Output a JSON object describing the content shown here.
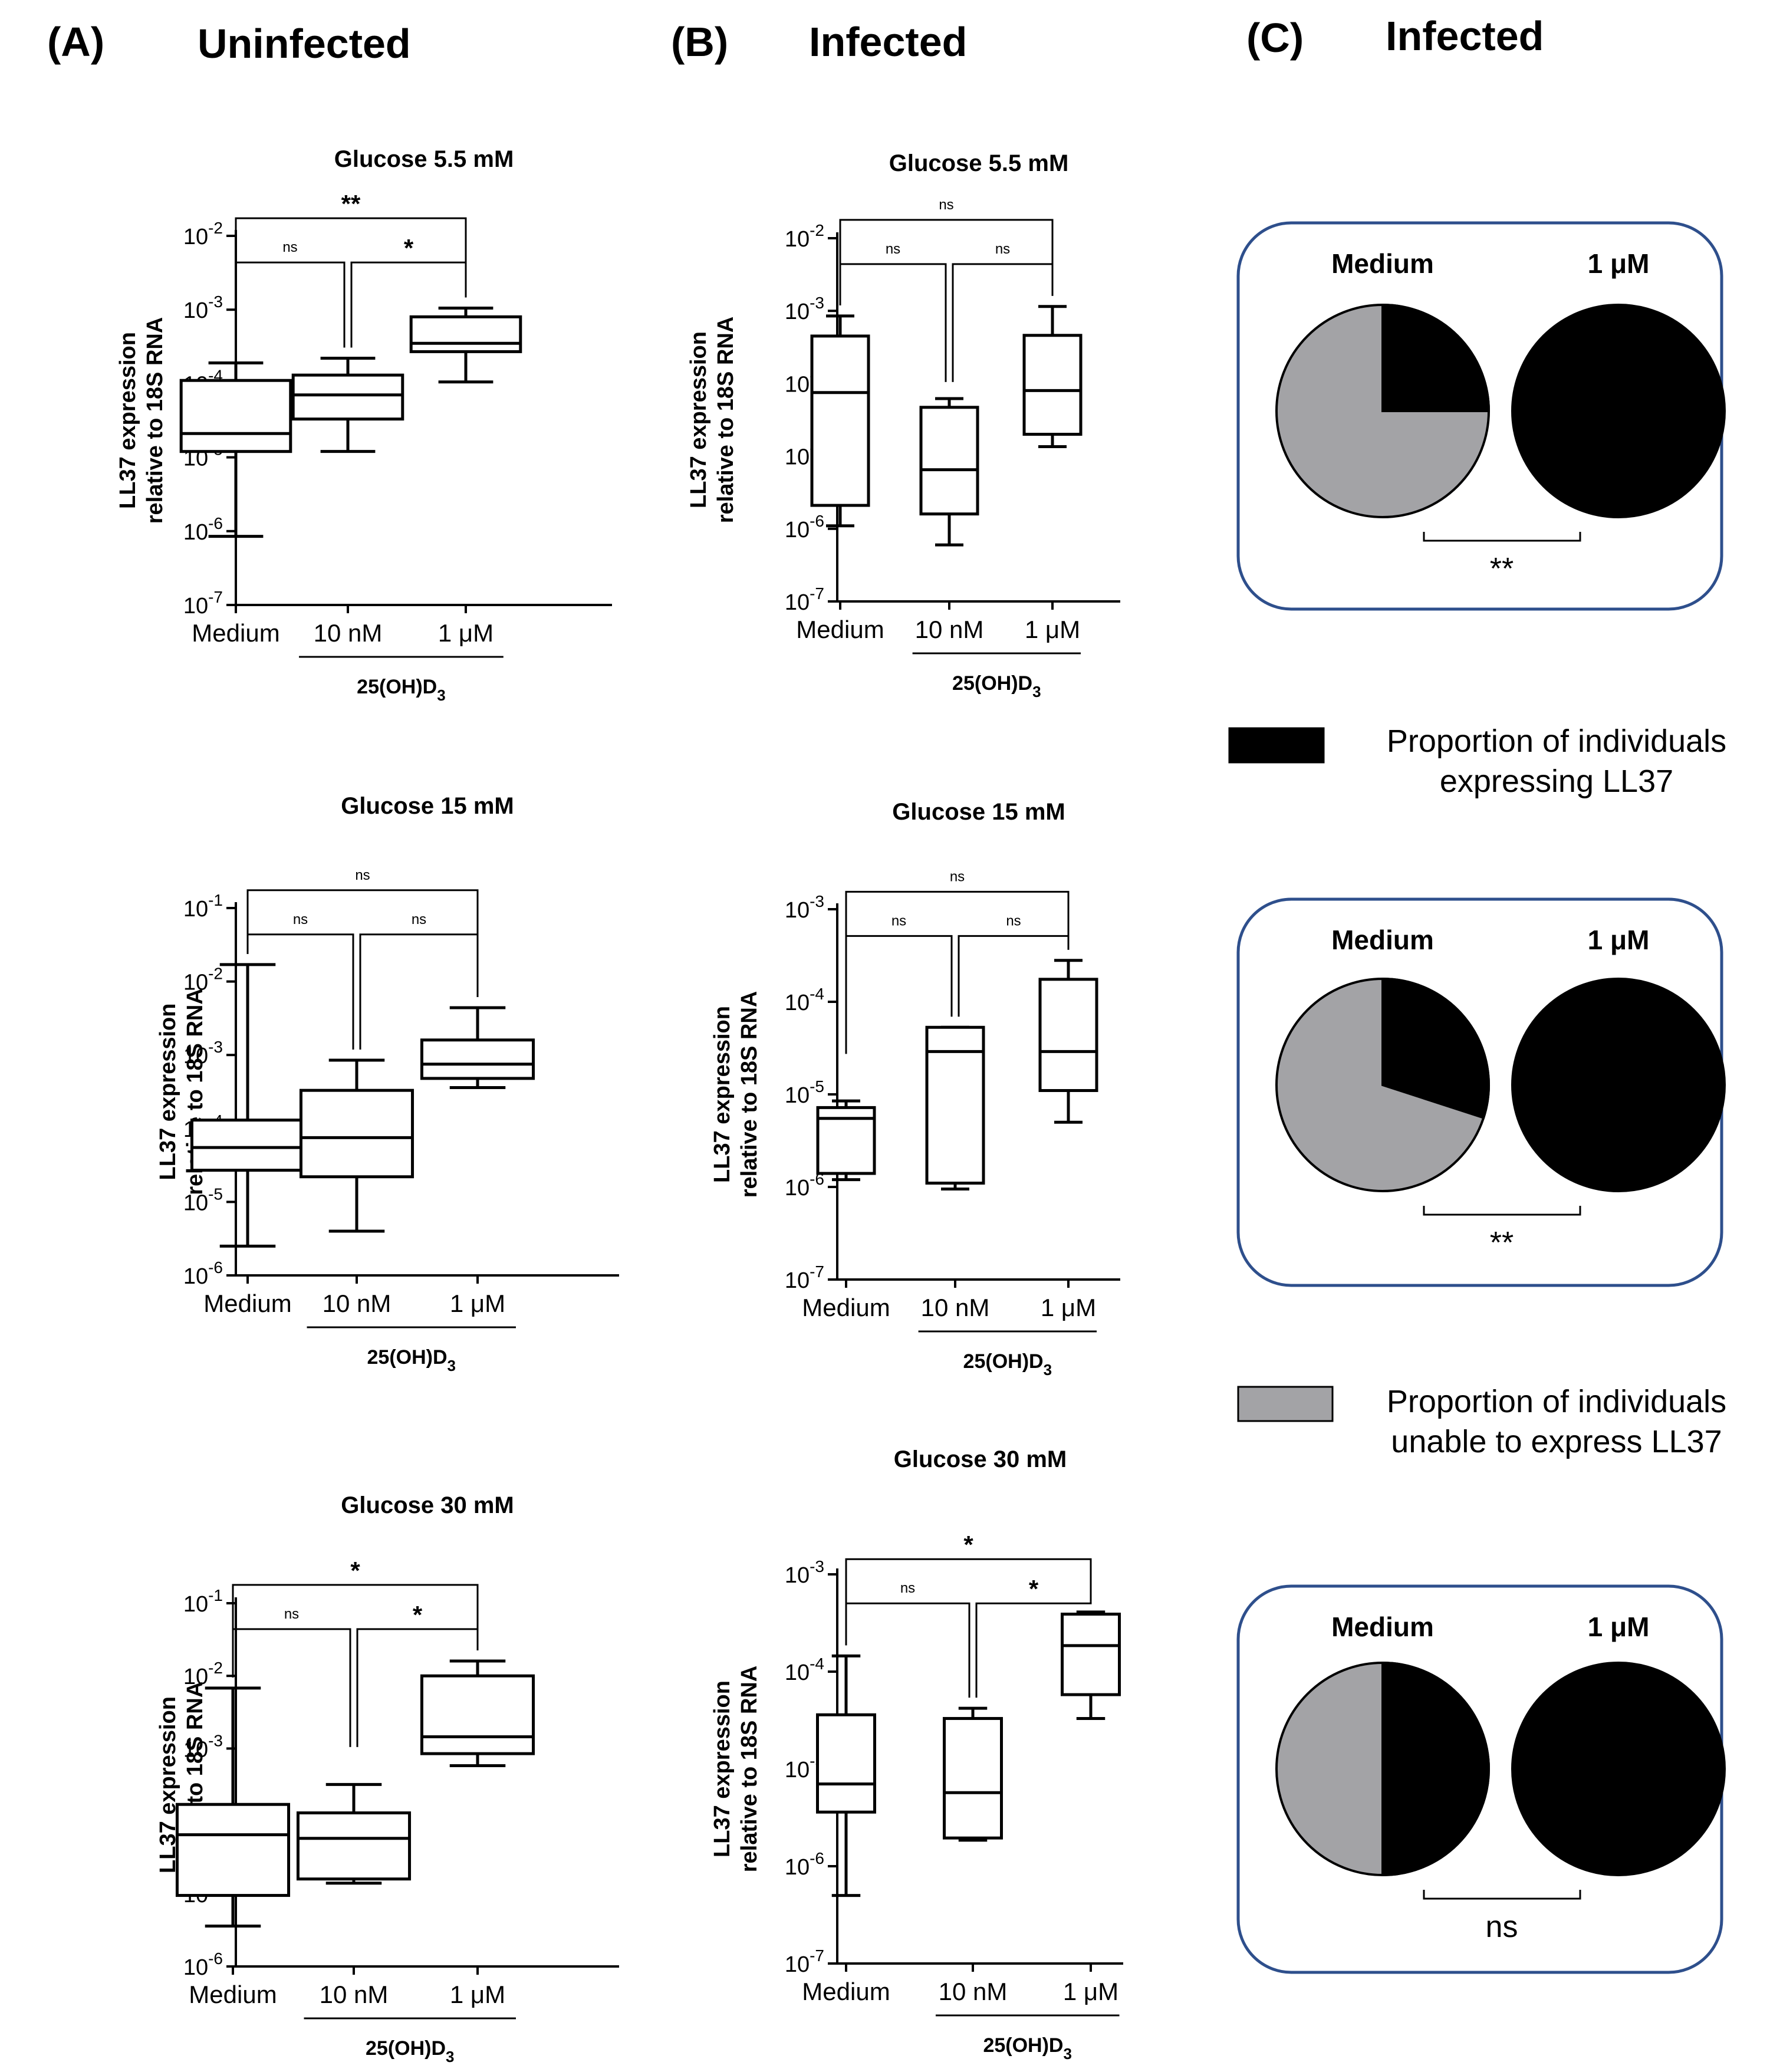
{
  "panels": [
    {
      "label": "(A)",
      "title": "Uninfected"
    },
    {
      "label": "(B)",
      "title": "Infected"
    },
    {
      "label": "(C)",
      "title": "Infected"
    }
  ],
  "chart_data": [
    {
      "type": "box",
      "panel": "A",
      "title": "Glucose 5.5 mM",
      "ylabel": [
        "LL37 expression",
        "relative to 18S RNA"
      ],
      "yscale": "log",
      "ylim_exp": [
        -7,
        -2
      ],
      "categories": [
        "Medium",
        "10 nM",
        "1 μM"
      ],
      "group_label": "25(OH)D",
      "group_sub": "3",
      "boxes": [
        {
          "min": 8.5e-07,
          "q1": 1.2e-05,
          "median": 2.1e-05,
          "q3": 0.00011,
          "max": 0.00019
        },
        {
          "min": 1.2e-05,
          "q1": 3.3e-05,
          "median": 7e-05,
          "q3": 0.00013,
          "max": 0.00022
        },
        {
          "min": 0.000105,
          "q1": 0.00027,
          "median": 0.00035,
          "q3": 0.0008,
          "max": 0.00105
        }
      ],
      "comparisons": [
        {
          "from": 0,
          "to": 2,
          "label": "**"
        },
        {
          "from": 0,
          "to": 1,
          "label": "ns"
        },
        {
          "from": 1,
          "to": 2,
          "label": "*"
        }
      ]
    },
    {
      "type": "box",
      "panel": "A",
      "title": "Glucose 15 mM",
      "ylabel": [
        "LL37 expression",
        "relative to 18S RNA"
      ],
      "yscale": "log",
      "ylim_exp": [
        -6,
        -1
      ],
      "categories": [
        "Medium",
        "10 nM",
        "1 μM"
      ],
      "group_label": "25(OH)D",
      "group_sub": "3",
      "boxes": [
        {
          "min": 2.5e-06,
          "q1": 2.7e-05,
          "median": 5.5e-05,
          "q3": 0.00013,
          "max": 0.017
        },
        {
          "min": 4e-06,
          "q1": 2.2e-05,
          "median": 7.5e-05,
          "q3": 0.00033,
          "max": 0.00085
        },
        {
          "min": 0.00036,
          "q1": 0.00048,
          "median": 0.00075,
          "q3": 0.0016,
          "max": 0.0044
        }
      ],
      "comparisons": [
        {
          "from": 0,
          "to": 2,
          "label": "ns"
        },
        {
          "from": 0,
          "to": 1,
          "label": "ns"
        },
        {
          "from": 1,
          "to": 2,
          "label": "ns"
        }
      ]
    },
    {
      "type": "box",
      "panel": "A",
      "title": "Glucose 30 mM",
      "ylabel": [
        "LL37 expression",
        "relative to 18S RNA"
      ],
      "yscale": "log",
      "ylim_exp": [
        -6,
        -1
      ],
      "categories": [
        "Medium",
        "10 nM",
        "1 μM"
      ],
      "group_label": "25(OH)D",
      "group_sub": "3",
      "boxes": [
        {
          "min": 3.6e-06,
          "q1": 9.5e-06,
          "median": 6.5e-05,
          "q3": 0.00017,
          "max": 0.0068
        },
        {
          "min": 1.4e-05,
          "q1": 1.6e-05,
          "median": 5.8e-05,
          "q3": 0.00013,
          "max": 0.00032
        },
        {
          "min": 0.00058,
          "q1": 0.00085,
          "median": 0.00145,
          "q3": 0.01,
          "max": 0.016
        }
      ],
      "comparisons": [
        {
          "from": 0,
          "to": 2,
          "label": "*"
        },
        {
          "from": 0,
          "to": 1,
          "label": "ns"
        },
        {
          "from": 1,
          "to": 2,
          "label": "*"
        }
      ]
    },
    {
      "type": "box",
      "panel": "B",
      "title": "Glucose 5.5 mM",
      "ylabel": [
        "LL37 expression",
        "relative to 18S RNA"
      ],
      "yscale": "log",
      "ylim_exp": [
        -7,
        -2
      ],
      "categories": [
        "Medium",
        "10 nM",
        "1 μM"
      ],
      "group_label": "25(OH)D",
      "group_sub": "3",
      "boxes": [
        {
          "min": 1.1e-06,
          "q1": 2.1e-06,
          "median": 7.5e-05,
          "q3": 0.00045,
          "max": 0.00085
        },
        {
          "min": 6e-07,
          "q1": 1.6e-06,
          "median": 6.5e-06,
          "q3": 4.7e-05,
          "max": 6.2e-05
        },
        {
          "min": 1.35e-05,
          "q1": 2e-05,
          "median": 8e-05,
          "q3": 0.00046,
          "max": 0.00115
        }
      ],
      "comparisons": [
        {
          "from": 0,
          "to": 2,
          "label": "ns"
        },
        {
          "from": 0,
          "to": 1,
          "label": "ns"
        },
        {
          "from": 1,
          "to": 2,
          "label": "ns"
        }
      ]
    },
    {
      "type": "box",
      "panel": "B",
      "title": "Glucose 15 mM",
      "ylabel": [
        "LL37 expression",
        "relative to 18S RNA"
      ],
      "yscale": "log",
      "ylim_exp": [
        -7,
        -3
      ],
      "categories": [
        "Medium",
        "10 nM",
        "1 μM"
      ],
      "group_label": "25(OH)D",
      "group_sub": "3",
      "boxes": [
        {
          "min": 1.2e-06,
          "q1": 1.4e-06,
          "median": 5.5e-06,
          "q3": 7.2e-06,
          "max": 8.5e-06
        },
        {
          "min": 9.5e-07,
          "q1": 1.1e-06,
          "median": 2.9e-05,
          "q3": 5.3e-05,
          "max": 5.3e-05
        },
        {
          "min": 5e-06,
          "q1": 1.1e-05,
          "median": 2.9e-05,
          "q3": 0.000175,
          "max": 0.00028
        }
      ],
      "comparisons": [
        {
          "from": 0,
          "to": 2,
          "label": "ns"
        },
        {
          "from": 0,
          "to": 1,
          "label": "ns"
        },
        {
          "from": 1,
          "to": 2,
          "label": "ns"
        }
      ]
    },
    {
      "type": "box",
      "panel": "B",
      "title": "Glucose 30 mM",
      "ylabel": [
        "LL37 expression",
        "relative to 18S RNA"
      ],
      "yscale": "log",
      "ylim_exp": [
        -7,
        -3
      ],
      "categories": [
        "Medium",
        "10 nM",
        "1 μM"
      ],
      "group_label": "25(OH)D",
      "group_sub": "3",
      "boxes": [
        {
          "min": 5e-07,
          "q1": 3.6e-06,
          "median": 7e-06,
          "q3": 3.6e-05,
          "max": 0.000145
        },
        {
          "min": 1.85e-06,
          "q1": 1.95e-06,
          "median": 5.7e-06,
          "q3": 3.3e-05,
          "max": 4.2e-05
        },
        {
          "min": 3.3e-05,
          "q1": 5.8e-05,
          "median": 0.000185,
          "q3": 0.00039,
          "max": 0.00041
        }
      ],
      "comparisons": [
        {
          "from": 0,
          "to": 2,
          "label": "*"
        },
        {
          "from": 0,
          "to": 1,
          "label": "ns"
        },
        {
          "from": 1,
          "to": 2,
          "label": "*"
        }
      ]
    },
    {
      "type": "pie",
      "panel": "C",
      "row": "Glucose 5.5 mM",
      "labels": [
        "Medium",
        "1 μM"
      ],
      "expressing_fraction": [
        0.25,
        1.0
      ],
      "significance": "**"
    },
    {
      "type": "pie",
      "panel": "C",
      "row": "Glucose 15 mM",
      "labels": [
        "Medium",
        "1 μM"
      ],
      "expressing_fraction": [
        0.3,
        1.0
      ],
      "significance": "**"
    },
    {
      "type": "pie",
      "panel": "C",
      "row": "Glucose 30 mM",
      "labels": [
        "Medium",
        "1 μM"
      ],
      "expressing_fraction": [
        0.5,
        1.0
      ],
      "significance": "ns"
    }
  ],
  "legend": [
    {
      "color": "#000000",
      "lines": [
        "Proportion of individuals",
        "expressing LL37"
      ]
    },
    {
      "color": "#a3a3a6",
      "lines": [
        "Proportion of individuals",
        "unable to express LL37"
      ]
    }
  ]
}
